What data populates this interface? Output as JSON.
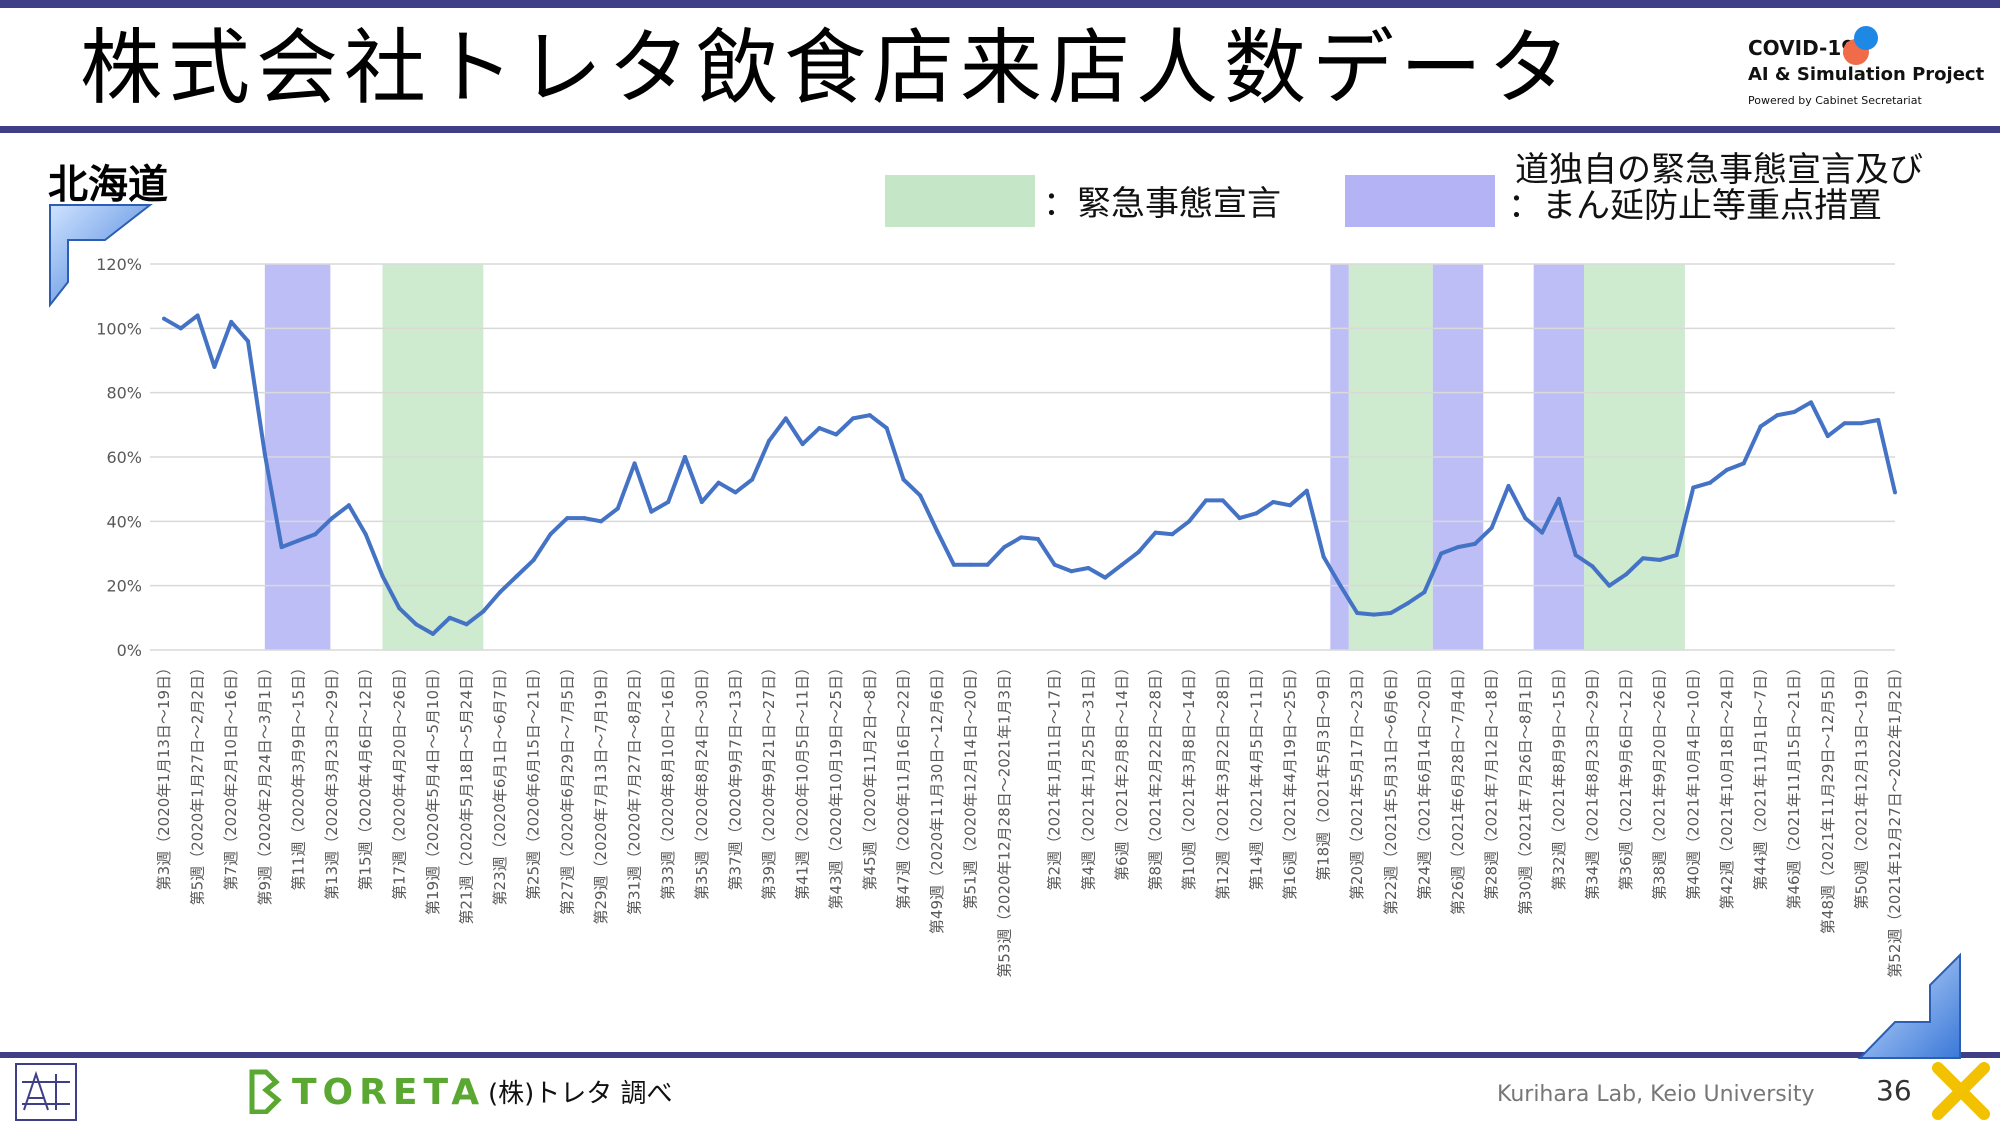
{
  "header": {
    "title": "株式会社トレタ飲食店来店人数データ",
    "logo": {
      "line1": "COVID-19",
      "line2": "AI & Simulation Project",
      "line3": "Powered by Cabinet Secretariat"
    }
  },
  "region": "北海道",
  "legend": {
    "emergency_label": "：緊急事態宣言",
    "priority_label_line1": "道独自の緊急事態宣言及び",
    "priority_label_line2": "：まん延防止等重点措置",
    "emergency_color": "#c5e6c7",
    "priority_color": "#b3b3f5"
  },
  "footer": {
    "source": "(株)トレタ 調べ",
    "brand": "TORETA",
    "lab": "Kurihara Lab, Keio University",
    "page": "36"
  },
  "colors": {
    "band": "#3f3f87",
    "line": "#4472c4",
    "brand_green": "#5aa832"
  },
  "chart_data": {
    "type": "line",
    "ylim": [
      0,
      120
    ],
    "yticks": [
      "0%",
      "20%",
      "40%",
      "60%",
      "80%",
      "100%",
      "120%"
    ],
    "grid": true,
    "x_labels": [
      "第3週（2020年1月13日～19日）",
      "第5週（2020年1月27日～2月2日）",
      "第7週（2020年2月10日～16日）",
      "第9週（2020年2月24日～3月1日）",
      "第11週（2020年3月9日～15日）",
      "第13週（2020年3月23日～29日）",
      "第15週（2020年4月6日～12日）",
      "第17週（2020年4月20日～26日）",
      "第19週（2020年5月4日～5月10日）",
      "第21週（2020年5月18日～5月24日）",
      "第23週（2020年6月1日～6月7日）",
      "第25週（2020年6月15日～21日）",
      "第27週（2020年6月29日～7月5日）",
      "第29週（2020年7月13日～7月19日）",
      "第31週（2020年7月27日～8月2日）",
      "第33週（2020年8月10日～16日）",
      "第35週（2020年8月24日～30日）",
      "第37週（2020年9月7日～13日）",
      "第39週（2020年9月21日～27日）",
      "第41週（2020年10月5日～11日）",
      "第43週（2020年10月19日～25日）",
      "第45週（2020年11月2日～8日）",
      "第47週（2020年11月16日～22日）",
      "第49週（2020年11月30日～12月6日）",
      "第51週（2020年12月14日～20日）",
      "第53週（2020年12月28日～2021年1月3日）",
      "第2週（2021年1月11日～17日）",
      "第4週（2021年1月25日～31日）",
      "第6週（2021年2月8日～14日）",
      "第8週（2021年2月22日～28日）",
      "第10週（2021年3月8日～14日）",
      "第12週（2021年3月22日～28日）",
      "第14週（2021年4月5日～11日）",
      "第16週（2021年4月19日～25日）",
      "第18週（2021年5月3日～9日）",
      "第20週（2021年5月17日～23日）",
      "第22週（2021年5月31日～6月6日）",
      "第24週（2021年6月14日～20日）",
      "第26週（2021年6月28日～7月4日）",
      "第28週（2021年7月12日～18日）",
      "第30週（2021年7月26日～8月1日）",
      "第32週（2021年8月9日～15日）",
      "第34週（2021年8月23日～29日）",
      "第36週（2021年9月6日～12日）",
      "第38週（2021年9月20日～26日）",
      "第40週（2021年10月4日～10日）",
      "第42週（2021年10月18日～24日）",
      "第44週（2021年11月1日～7日）",
      "第46週（2021年11月15日～21日）",
      "第48週（2021年11月29日～12月5日）",
      "第50週（2021年12月13日～19日）",
      "第52週（2021年12月27日～2022年1月2日）"
    ],
    "series": [
      {
        "values": [
          103,
          100,
          104,
          88,
          102,
          96,
          61,
          32,
          34,
          36,
          41,
          45,
          36,
          23,
          13,
          8,
          5,
          10,
          8,
          12,
          18,
          23,
          28,
          36,
          41,
          41,
          40,
          44,
          58,
          43,
          46,
          60,
          46,
          52,
          49,
          53,
          65,
          72,
          64,
          69,
          67,
          72,
          73,
          69,
          53,
          48,
          37,
          26.5,
          26.5,
          26.5,
          32,
          35,
          34.5,
          26.5,
          24.5,
          25.5,
          22.5,
          26.5,
          30.5,
          36.5,
          36,
          40,
          46.5,
          46.5,
          41,
          42.5,
          46,
          45,
          49.5,
          29,
          20,
          11.5,
          11,
          11.5,
          14.5,
          18,
          30,
          32,
          33,
          38,
          51,
          41,
          36.5,
          47,
          29.5,
          26,
          20,
          23.5,
          28.5,
          28,
          29.5,
          50.5,
          52,
          56,
          58,
          69.5,
          73,
          74,
          77,
          66.5,
          70.5,
          70.5,
          71.5,
          49
        ]
      }
    ],
    "bands": [
      {
        "type": "priority",
        "start": 6,
        "end": 9.9
      },
      {
        "type": "emergency",
        "start": 13,
        "end": 19
      },
      {
        "type": "priority",
        "start": 69.4,
        "end": 70.5
      },
      {
        "type": "emergency",
        "start": 70.5,
        "end": 75.5
      },
      {
        "type": "priority",
        "start": 75.5,
        "end": 78.5
      },
      {
        "type": "priority",
        "start": 81.5,
        "end": 84.5
      },
      {
        "type": "emergency",
        "start": 84.5,
        "end": 90.5
      }
    ]
  }
}
